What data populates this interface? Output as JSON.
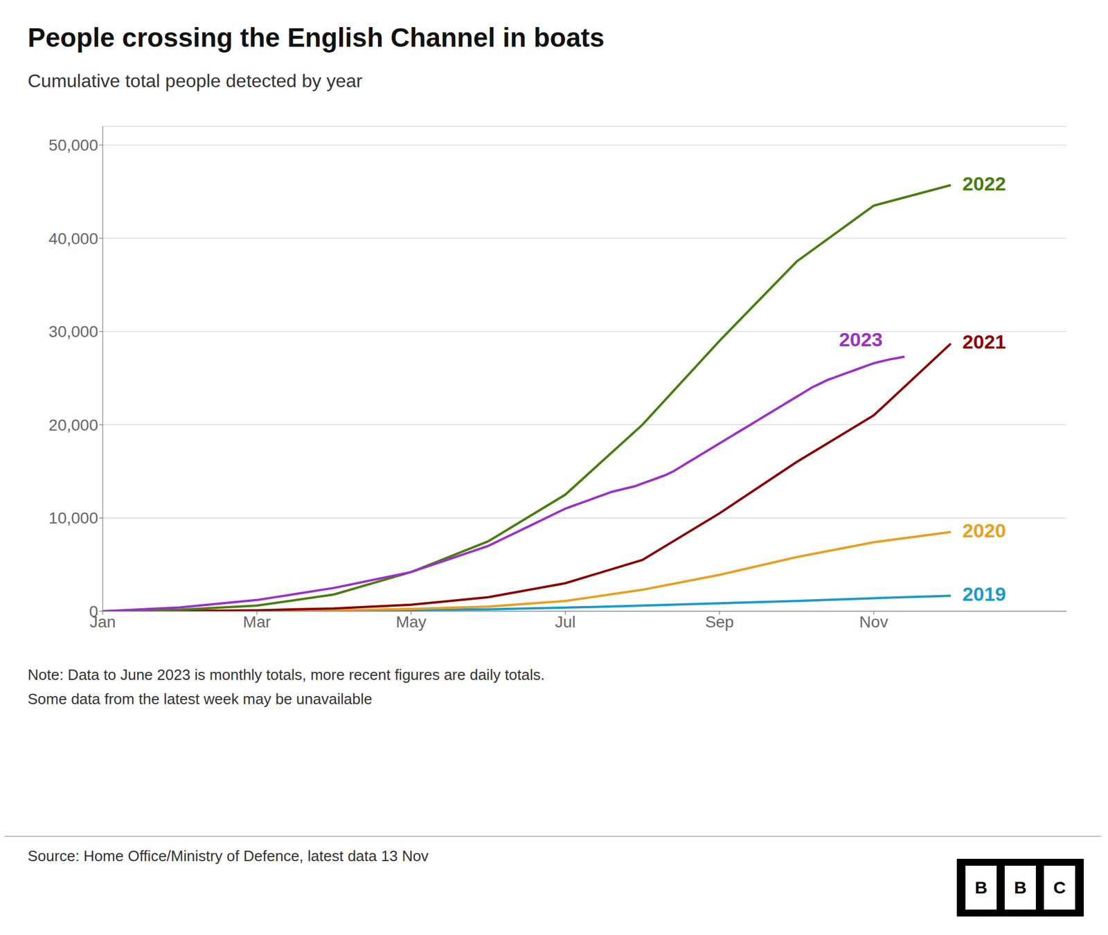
{
  "chart_data": {
    "type": "line",
    "title": "People crossing the English Channel in boats",
    "subtitle": "Cumulative total people detected by year",
    "note": "Note: Data to June 2023 is monthly totals, more recent figures are daily totals.\nSome data from the latest week may be unavailable",
    "source": "Source: Home Office/Ministry of Defence, latest data 13 Nov",
    "logo": "BBC",
    "xlim": [
      1,
      13.5
    ],
    "xticks": [
      {
        "value": 1,
        "label": "Jan"
      },
      {
        "value": 3,
        "label": "Mar"
      },
      {
        "value": 5,
        "label": "May"
      },
      {
        "value": 7,
        "label": "Jul"
      },
      {
        "value": 9,
        "label": "Sep"
      },
      {
        "value": 11,
        "label": "Nov"
      }
    ],
    "ylim": [
      0,
      52000
    ],
    "yticks": [
      0,
      {
        "value": 10000,
        "label": "10,000"
      },
      {
        "value": 20000,
        "label": "20,000"
      },
      {
        "value": 30000,
        "label": "30,000"
      },
      {
        "value": 40000,
        "label": "40,000"
      },
      {
        "value": 50000,
        "label": "50,000"
      }
    ],
    "grid": true,
    "series": [
      {
        "name": "2019",
        "color": "#1a9bc9",
        "x": [
          1,
          2,
          3,
          4,
          5,
          6,
          7,
          8,
          9,
          10,
          11,
          12
        ],
        "values": [
          0,
          5,
          20,
          60,
          120,
          200,
          380,
          600,
          850,
          1100,
          1400,
          1650
        ]
      },
      {
        "name": "2020",
        "color": "#e8a020",
        "x": [
          1,
          2,
          3,
          4,
          5,
          6,
          7,
          8,
          9,
          10,
          11,
          12
        ],
        "values": [
          0,
          5,
          20,
          80,
          250,
          500,
          1100,
          2300,
          3900,
          5800,
          7400,
          8500
        ]
      },
      {
        "name": "2021",
        "color": "#8b0000",
        "x": [
          1,
          2,
          3,
          4,
          5,
          6,
          7,
          8,
          9,
          10,
          11,
          12
        ],
        "values": [
          0,
          30,
          100,
          300,
          700,
          1500,
          3000,
          5500,
          10500,
          16000,
          21000,
          28700
        ]
      },
      {
        "name": "2022",
        "color": "#4a7c10",
        "x": [
          1,
          2,
          3,
          4,
          5,
          6,
          7,
          8,
          9,
          10,
          11,
          12
        ],
        "values": [
          0,
          150,
          600,
          1800,
          4200,
          7500,
          12500,
          20000,
          29000,
          37500,
          43500,
          45700
        ]
      },
      {
        "name": "2023",
        "color": "#9b30c8",
        "x": [
          1,
          2,
          3,
          4,
          5,
          6,
          6.25,
          6.5,
          6.75,
          7.0,
          7.1,
          7.2,
          7.3,
          7.4,
          7.5,
          7.6,
          7.7,
          7.8,
          7.9,
          8.0,
          8.1,
          8.2,
          8.3,
          8.4,
          8.5,
          8.6,
          8.7,
          8.8,
          8.9,
          9.0,
          9.1,
          9.2,
          9.3,
          9.4,
          9.5,
          9.6,
          9.7,
          9.8,
          9.9,
          10.0,
          10.1,
          10.2,
          10.3,
          10.4,
          10.5,
          10.6,
          10.7,
          10.8,
          10.9,
          11.0,
          11.1,
          11.2,
          11.3,
          11.4
        ],
        "values": [
          0,
          400,
          1200,
          2500,
          4200,
          7000,
          8000,
          9000,
          10000,
          11000,
          11300,
          11600,
          11900,
          12200,
          12500,
          12800,
          13000,
          13200,
          13400,
          13700,
          14000,
          14300,
          14600,
          15000,
          15500,
          16000,
          16500,
          17000,
          17500,
          18000,
          18500,
          19000,
          19500,
          20000,
          20500,
          21000,
          21500,
          22000,
          22500,
          23000,
          23500,
          24000,
          24400,
          24800,
          25100,
          25400,
          25700,
          26000,
          26300,
          26600,
          26800,
          27000,
          27150,
          27300
        ]
      }
    ],
    "annotations": [
      {
        "text": "2019",
        "x": 12.15,
        "y": 1650,
        "color": "#1a9bc9"
      },
      {
        "text": "2020",
        "x": 12.15,
        "y": 8500,
        "color": "#e8a020"
      },
      {
        "text": "2021",
        "x": 12.15,
        "y": 28700,
        "color": "#8b0000"
      },
      {
        "text": "2022",
        "x": 12.15,
        "y": 45700,
        "color": "#4a7c10"
      },
      {
        "text": "2023",
        "x": 10.55,
        "y": 29000,
        "color": "#9b30c8"
      }
    ]
  }
}
